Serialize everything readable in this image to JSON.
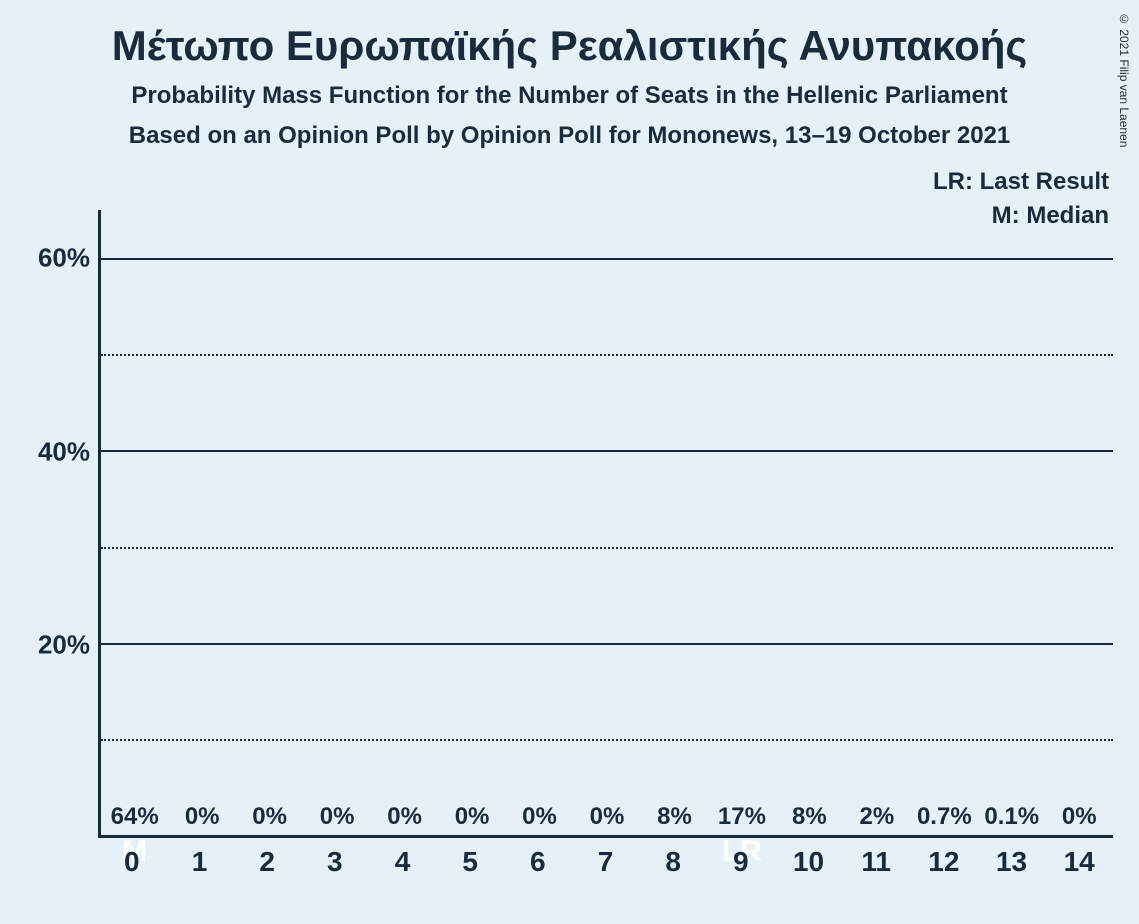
{
  "copyright": "© 2021 Filip van Laenen",
  "title": "Μέτωπο Ευρωπαϊκής Ρεαλιστικής Ανυπακοής",
  "subtitle": "Probability Mass Function for the Number of Seats in the Hellenic Parliament",
  "subtitle2": "Based on an Opinion Poll by Opinion Poll for Mononews, 13–19 October 2021",
  "legend": {
    "lr": "LR: Last Result",
    "m": "M: Median"
  },
  "chart": {
    "type": "bar",
    "background_color": "#e6f0f7",
    "bar_color": "#ef2bb0",
    "text_color": "#1a2b3d",
    "axis_color": "#1a2b3d",
    "grid_solid_color": "#1a2b3d",
    "grid_dotted_color": "#1a2b3d",
    "ylim": [
      0,
      65
    ],
    "y_ticks": [
      {
        "value": 20,
        "label": "20%",
        "style": "solid"
      },
      {
        "value": 40,
        "label": "40%",
        "style": "solid"
      },
      {
        "value": 60,
        "label": "60%",
        "style": "solid"
      }
    ],
    "y_minor": [
      10,
      30,
      50
    ],
    "bar_width_ratio": 0.78,
    "categories": [
      "0",
      "1",
      "2",
      "3",
      "4",
      "5",
      "6",
      "7",
      "8",
      "9",
      "10",
      "11",
      "12",
      "13",
      "14"
    ],
    "values": [
      64,
      0,
      0,
      0,
      0,
      0,
      0,
      0,
      8,
      17,
      8,
      2,
      0.7,
      0.1,
      0
    ],
    "value_labels": [
      "64%",
      "0%",
      "0%",
      "0%",
      "0%",
      "0%",
      "0%",
      "0%",
      "8%",
      "17%",
      "8%",
      "2%",
      "0.7%",
      "0.1%",
      "0%"
    ],
    "inner_labels": {
      "0": {
        "text": "M",
        "top_pct": 48
      },
      "9": {
        "text": "LR",
        "top_pct": 20
      }
    },
    "label_fontsize": 24,
    "x_tick_fontsize": 28,
    "y_tick_fontsize": 26,
    "title_fontsize": 42,
    "subtitle_fontsize": 24,
    "legend_fontsize": 24,
    "inner_label_fontsize": 30,
    "inner_label_color": "#ffffff"
  }
}
